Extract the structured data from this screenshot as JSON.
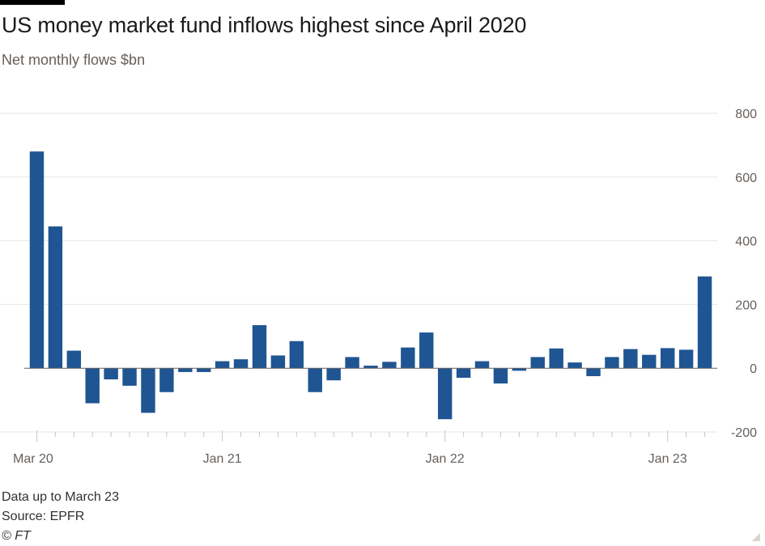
{
  "title": "US money market fund inflows highest since April 2020",
  "subtitle": "Net monthly flows $bn",
  "footer": {
    "note": "Data up to March 23",
    "source": "Source: EPFR",
    "logo": "© FT"
  },
  "colors": {
    "bar": "#1f5593",
    "grid": "#e8e6e3",
    "zero_line": "#66605c",
    "text": "#66605c"
  },
  "chart_data": {
    "type": "bar",
    "title": "US money market fund inflows highest since April 2020",
    "subtitle": "Net monthly flows $bn",
    "xlabel": "",
    "ylabel": "",
    "ylim": [
      -200,
      800
    ],
    "y_ticks": [
      800,
      600,
      400,
      200,
      0,
      -200
    ],
    "y_axis_position": "right",
    "grid": true,
    "x_tick_labels": [
      {
        "label": "Mar 20",
        "category": "2020-03"
      },
      {
        "label": "Jan 21",
        "category": "2021-01"
      },
      {
        "label": "Jan 22",
        "category": "2022-01"
      },
      {
        "label": "Jan 23",
        "category": "2023-01"
      }
    ],
    "categories": [
      "2020-03",
      "2020-04",
      "2020-05",
      "2020-06",
      "2020-07",
      "2020-08",
      "2020-09",
      "2020-10",
      "2020-11",
      "2020-12",
      "2021-01",
      "2021-02",
      "2021-03",
      "2021-04",
      "2021-05",
      "2021-06",
      "2021-07",
      "2021-08",
      "2021-09",
      "2021-10",
      "2021-11",
      "2021-12",
      "2022-01",
      "2022-02",
      "2022-03",
      "2022-04",
      "2022-05",
      "2022-06",
      "2022-07",
      "2022-08",
      "2022-09",
      "2022-10",
      "2022-11",
      "2022-12",
      "2023-01",
      "2023-02",
      "2023-03"
    ],
    "values": [
      680,
      445,
      55,
      -110,
      -35,
      -55,
      -140,
      -75,
      -12,
      -12,
      22,
      28,
      135,
      40,
      85,
      -75,
      -38,
      35,
      8,
      20,
      65,
      112,
      -160,
      -30,
      22,
      -48,
      -8,
      35,
      62,
      18,
      -25,
      35,
      60,
      42,
      63,
      58,
      288
    ]
  }
}
